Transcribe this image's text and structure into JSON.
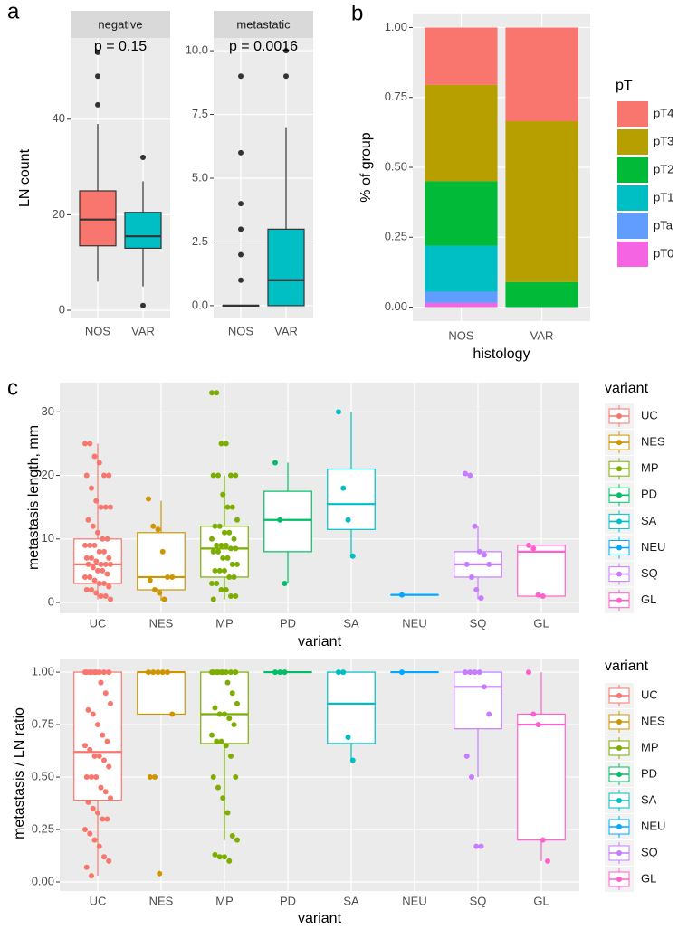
{
  "chart_data": [
    {
      "type": "box",
      "panel": "a",
      "strip": "negative",
      "annotation": "p = 0.15",
      "ylabel": "LN count",
      "filled": true,
      "jitter": false,
      "categories": [
        "NOS",
        "VAR"
      ],
      "ylim": [
        -1.7,
        57
      ],
      "yticks": [
        0,
        20,
        40
      ],
      "boxes": [
        {
          "color": "#F8766D",
          "q1": 13.5,
          "median": 19,
          "q3": 25,
          "whisker_low": 6,
          "whisker_high": 39,
          "points": [
            43,
            49,
            54
          ]
        },
        {
          "color": "#00BFC4",
          "q1": 13,
          "median": 15.5,
          "q3": 20.5,
          "whisker_low": 5,
          "whisker_high": 27,
          "points": [
            1,
            32
          ]
        }
      ]
    },
    {
      "type": "box",
      "strip": "metastatic",
      "annotation": "p = 0.0016",
      "filled": true,
      "jitter": false,
      "categories": [
        "NOS",
        "VAR"
      ],
      "ylim": [
        -0.5,
        10.5
      ],
      "yticks": [
        {
          "value": 0,
          "label": "0.0"
        },
        2.5,
        {
          "value": 5,
          "label": "5.0"
        },
        7.5,
        {
          "value": 10,
          "label": "10.0"
        }
      ],
      "boxes": [
        {
          "color": "#F8766D",
          "q1": 0,
          "median": 0,
          "q3": 0,
          "whisker_low": 0,
          "whisker_high": 0,
          "points": [
            1,
            2,
            3,
            4,
            6,
            9
          ]
        },
        {
          "color": "#00BFC4",
          "q1": 0,
          "median": 1,
          "q3": 3,
          "whisker_low": 0,
          "whisker_high": 7,
          "points": [
            9,
            10
          ]
        }
      ]
    },
    {
      "type": "bar",
      "panel": "b",
      "stacked": true,
      "ylabel": "% of group",
      "xlabel": "histology",
      "legend_title": "pT",
      "categories": [
        "NOS",
        "VAR"
      ],
      "ylim": [
        -0.05,
        1.05
      ],
      "yticks": [
        {
          "value": 0,
          "label": "0.00"
        },
        {
          "value": 0.25,
          "label": "0.25"
        },
        {
          "value": 0.5,
          "label": "0.50"
        },
        {
          "value": 0.75,
          "label": "0.75"
        },
        {
          "value": 1,
          "label": "1.00"
        }
      ],
      "series": [
        {
          "name": "pT4",
          "color": "#F8766D",
          "values": [
            0.205,
            0.335
          ]
        },
        {
          "name": "pT3",
          "color": "#B79F00",
          "values": [
            0.345,
            0.575
          ]
        },
        {
          "name": "pT2",
          "color": "#00BA38",
          "values": [
            0.23,
            0.09
          ]
        },
        {
          "name": "pT1",
          "color": "#00BFC4",
          "values": [
            0.165,
            0
          ]
        },
        {
          "name": "pTa",
          "color": "#619CFF",
          "values": [
            0.04,
            0
          ]
        },
        {
          "name": "pT0",
          "color": "#F564E3",
          "values": [
            0.015,
            0
          ]
        }
      ]
    },
    {
      "type": "box",
      "panel": "c",
      "ylabel": "metastasis length, mm",
      "xlabel": "variant",
      "legend_title": "variant",
      "filled": false,
      "jitter": true,
      "categories": [
        "UC",
        "NES",
        "MP",
        "PD",
        "SA",
        "NEU",
        "SQ",
        "GL"
      ],
      "ylim": [
        -1.7,
        34.6
      ],
      "yticks": [
        0,
        10,
        20,
        30
      ],
      "boxes": [
        {
          "name": "UC",
          "color": "#F8766D",
          "q1": 3,
          "median": 6,
          "q3": 10,
          "whisker_low": 0.5,
          "whisker_high": 25,
          "points": [
            25,
            25,
            23,
            22,
            20,
            20,
            20,
            18,
            16,
            15,
            15,
            15,
            13,
            12,
            11,
            10,
            10,
            9,
            9,
            9,
            8,
            8,
            7,
            7,
            7,
            6.5,
            6,
            6,
            6,
            6,
            5.5,
            5,
            5,
            4.5,
            4,
            4,
            3.5,
            3,
            3,
            2.5,
            2,
            2,
            1.5,
            1,
            1,
            0.5
          ]
        },
        {
          "name": "NES",
          "color": "#CD9600",
          "q1": 2,
          "median": 4,
          "q3": 11,
          "whisker_low": 0.3,
          "whisker_high": 16,
          "points": [
            16.3,
            12,
            11.5,
            8,
            4,
            4,
            3.5,
            2,
            1.5,
            0.5
          ]
        },
        {
          "name": "MP",
          "color": "#7CAE00",
          "q1": 4,
          "median": 8.5,
          "q3": 12,
          "whisker_low": 0.5,
          "whisker_high": 20,
          "points": [
            33,
            33,
            25,
            25,
            20,
            20,
            20,
            20,
            17,
            15,
            15,
            13,
            12,
            12,
            11,
            11,
            10,
            10,
            9,
            9,
            9,
            8.5,
            8.5,
            8,
            8,
            7,
            7,
            6,
            6,
            5,
            5,
            5,
            4,
            4,
            3,
            3,
            2,
            2,
            1,
            1,
            0.5
          ]
        },
        {
          "name": "PD",
          "color": "#00BE67",
          "q1": 8,
          "median": 13,
          "q3": 17.5,
          "whisker_low": 3,
          "whisker_high": 22,
          "points": [
            22,
            13,
            3
          ]
        },
        {
          "name": "SA",
          "color": "#00BFC4",
          "q1": 11.5,
          "median": 15.5,
          "q3": 21,
          "whisker_low": 7,
          "whisker_high": 30,
          "points": [
            30,
            18,
            13,
            7.3
          ]
        },
        {
          "name": "NEU",
          "color": "#00A9FF",
          "q1": 1.2,
          "median": 1.2,
          "q3": 1.2,
          "whisker_low": 1.2,
          "whisker_high": 1.2,
          "points": [
            1.2
          ]
        },
        {
          "name": "SQ",
          "color": "#C77CFF",
          "q1": 4,
          "median": 6,
          "q3": 8,
          "whisker_low": 0.5,
          "whisker_high": 12,
          "points": [
            20.3,
            20,
            12,
            8,
            7.5,
            6,
            6,
            4,
            2,
            0.7
          ]
        },
        {
          "name": "GL",
          "color": "#FF61CC",
          "q1": 1,
          "median": 8,
          "q3": 9,
          "whisker_low": 1,
          "whisker_high": 9,
          "points": [
            9,
            8.5,
            1.2,
            1
          ]
        }
      ]
    },
    {
      "type": "box",
      "ylabel": "metastasis / LN ratio",
      "xlabel": "variant",
      "legend_title": "variant",
      "filled": false,
      "jitter": true,
      "categories": [
        "UC",
        "NES",
        "MP",
        "PD",
        "SA",
        "NEU",
        "SQ",
        "GL"
      ],
      "ylim": [
        -0.043,
        1.065
      ],
      "yticks": [
        {
          "value": 0,
          "label": "0.00"
        },
        {
          "value": 0.25,
          "label": "0.25"
        },
        {
          "value": 0.5,
          "label": "0.50"
        },
        {
          "value": 0.75,
          "label": "0.75"
        },
        {
          "value": 1,
          "label": "1.00"
        }
      ],
      "boxes": [
        {
          "name": "UC",
          "color": "#F8766D",
          "q1": 0.39,
          "median": 0.62,
          "q3": 1,
          "whisker_low": 0.03,
          "whisker_high": 1,
          "points": [
            1,
            1,
            1,
            1,
            1,
            1,
            1,
            1,
            1,
            0.95,
            0.9,
            0.85,
            0.82,
            0.8,
            0.75,
            0.7,
            0.67,
            0.65,
            0.63,
            0.6,
            0.6,
            0.58,
            0.55,
            0.5,
            0.5,
            0.5,
            0.45,
            0.43,
            0.4,
            0.38,
            0.35,
            0.33,
            0.3,
            0.3,
            0.25,
            0.23,
            0.2,
            0.17,
            0.12,
            0.1,
            0.07,
            0.03
          ]
        },
        {
          "name": "NES",
          "color": "#CD9600",
          "q1": 0.8,
          "median": 1,
          "q3": 1,
          "whisker_low": 0.8,
          "whisker_high": 1,
          "points": [
            1,
            1,
            1,
            1,
            1,
            0.8,
            0.5,
            0.5,
            0.04
          ]
        },
        {
          "name": "MP",
          "color": "#7CAE00",
          "q1": 0.66,
          "median": 0.8,
          "q3": 1,
          "whisker_low": 0.2,
          "whisker_high": 1,
          "points": [
            1,
            1,
            1,
            1,
            1,
            1,
            1,
            1,
            1,
            0.95,
            0.9,
            0.85,
            0.83,
            0.8,
            0.8,
            0.78,
            0.75,
            0.7,
            0.67,
            0.67,
            0.65,
            0.6,
            0.5,
            0.5,
            0.45,
            0.4,
            0.33,
            0.22,
            0.2,
            0.13,
            0.12,
            0.12,
            0.1
          ]
        },
        {
          "name": "PD",
          "color": "#00BE67",
          "q1": 1,
          "median": 1,
          "q3": 1,
          "whisker_low": 1,
          "whisker_high": 1,
          "points": [
            1,
            1,
            1
          ]
        },
        {
          "name": "SA",
          "color": "#00BFC4",
          "q1": 0.66,
          "median": 0.85,
          "q3": 1,
          "whisker_low": 0.58,
          "whisker_high": 1,
          "points": [
            1,
            1,
            0.69,
            0.58
          ]
        },
        {
          "name": "NEU",
          "color": "#00A9FF",
          "q1": 1,
          "median": 1,
          "q3": 1,
          "whisker_low": 1,
          "whisker_high": 1,
          "points": [
            1
          ]
        },
        {
          "name": "SQ",
          "color": "#C77CFF",
          "q1": 0.73,
          "median": 0.93,
          "q3": 1,
          "whisker_low": 0.5,
          "whisker_high": 1,
          "points": [
            1,
            1,
            1,
            1,
            0.93,
            0.8,
            0.6,
            0.5,
            0.17,
            0.17
          ]
        },
        {
          "name": "GL",
          "color": "#FF61CC",
          "q1": 0.2,
          "median": 0.75,
          "q3": 0.8,
          "whisker_low": 0.1,
          "whisker_high": 1,
          "points": [
            1,
            0.8,
            0.75,
            0.2,
            0.1
          ]
        }
      ]
    }
  ]
}
